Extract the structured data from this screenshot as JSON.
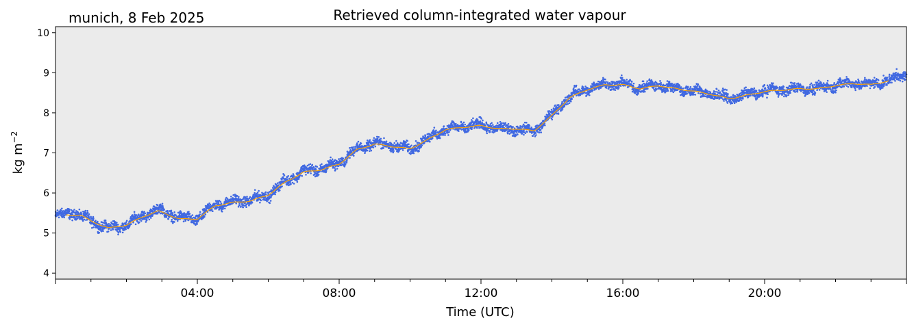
{
  "chart_data": {
    "type": "scatter",
    "title": "Retrieved column-integrated water vapour",
    "subtitle": "munich, 8 Feb 2025",
    "xlabel": "Time (UTC)",
    "ylabel": "kg m",
    "ylabel_superscript": "−2",
    "xlim_hours": [
      0,
      24
    ],
    "ylim": [
      3.85,
      10.15
    ],
    "x_ticks": [
      {
        "value": 4,
        "label": "04:00"
      },
      {
        "value": 8,
        "label": "08:00"
      },
      {
        "value": 12,
        "label": "12:00"
      },
      {
        "value": 16,
        "label": "16:00"
      },
      {
        "value": 20,
        "label": "20:00"
      }
    ],
    "y_ticks": [
      {
        "value": 4,
        "label": "4"
      },
      {
        "value": 5,
        "label": "5"
      },
      {
        "value": 6,
        "label": "6"
      },
      {
        "value": 7,
        "label": "7"
      },
      {
        "value": 8,
        "label": "8"
      },
      {
        "value": 9,
        "label": "9"
      },
      {
        "value": 10,
        "label": "10"
      }
    ],
    "grid": false,
    "background_color": "#ebebeb",
    "series": [
      {
        "kind": "scatter",
        "color": "#4169e1",
        "x_hours": [
          0.0,
          0.5,
          1.0,
          1.5,
          2.0,
          2.5,
          2.9,
          3.5,
          4.0,
          4.5,
          5.0,
          5.5,
          6.0,
          6.5,
          7.0,
          7.5,
          8.0,
          8.5,
          9.0,
          9.5,
          10.0,
          10.5,
          11.0,
          11.5,
          12.0,
          12.5,
          13.0,
          13.5,
          14.0,
          14.5,
          15.0,
          15.5,
          16.0,
          16.5,
          17.0,
          17.5,
          18.0,
          18.5,
          19.0,
          19.5,
          20.0,
          20.5,
          21.0,
          21.5,
          22.0,
          22.5,
          23.0,
          23.5,
          24.0
        ],
        "y": [
          5.42,
          5.52,
          5.3,
          5.12,
          5.2,
          5.45,
          5.58,
          5.38,
          5.35,
          5.7,
          5.78,
          5.82,
          5.95,
          6.3,
          6.55,
          6.6,
          6.75,
          7.1,
          7.25,
          7.18,
          7.1,
          7.35,
          7.6,
          7.65,
          7.7,
          7.6,
          7.6,
          7.55,
          7.95,
          8.4,
          8.6,
          8.72,
          8.72,
          8.62,
          8.7,
          8.6,
          8.55,
          8.48,
          8.35,
          8.45,
          8.55,
          8.58,
          8.6,
          8.6,
          8.7,
          8.75,
          8.7,
          8.82,
          8.95
        ],
        "spread": 0.12
      },
      {
        "kind": "line",
        "color": "#ffa500",
        "x_hours": [
          0.3,
          0.7,
          1.0,
          1.5,
          2.0,
          2.5,
          2.9,
          3.5,
          4.0,
          4.5,
          5.0,
          5.5,
          6.0,
          6.5,
          7.0,
          7.5,
          8.0,
          8.5,
          9.0,
          9.5,
          10.0,
          10.5,
          11.0,
          11.5,
          12.0,
          12.5,
          13.0,
          13.5,
          14.0,
          14.5,
          15.0,
          15.5,
          16.0,
          16.5,
          17.0,
          17.5,
          18.0,
          18.5,
          19.0,
          19.5,
          20.0,
          20.5,
          21.0,
          21.5,
          22.0,
          22.5,
          23.0,
          23.5
        ],
        "y": [
          5.45,
          5.45,
          5.3,
          5.12,
          5.2,
          5.42,
          5.55,
          5.35,
          5.35,
          5.68,
          5.76,
          5.8,
          5.95,
          6.28,
          6.52,
          6.58,
          6.72,
          7.08,
          7.22,
          7.16,
          7.1,
          7.33,
          7.58,
          7.64,
          7.68,
          7.6,
          7.6,
          7.55,
          7.93,
          8.38,
          8.58,
          8.7,
          8.7,
          8.6,
          8.68,
          8.6,
          8.54,
          8.46,
          8.35,
          8.44,
          8.53,
          8.57,
          8.6,
          8.6,
          8.68,
          8.73,
          8.7,
          8.8
        ]
      }
    ]
  }
}
